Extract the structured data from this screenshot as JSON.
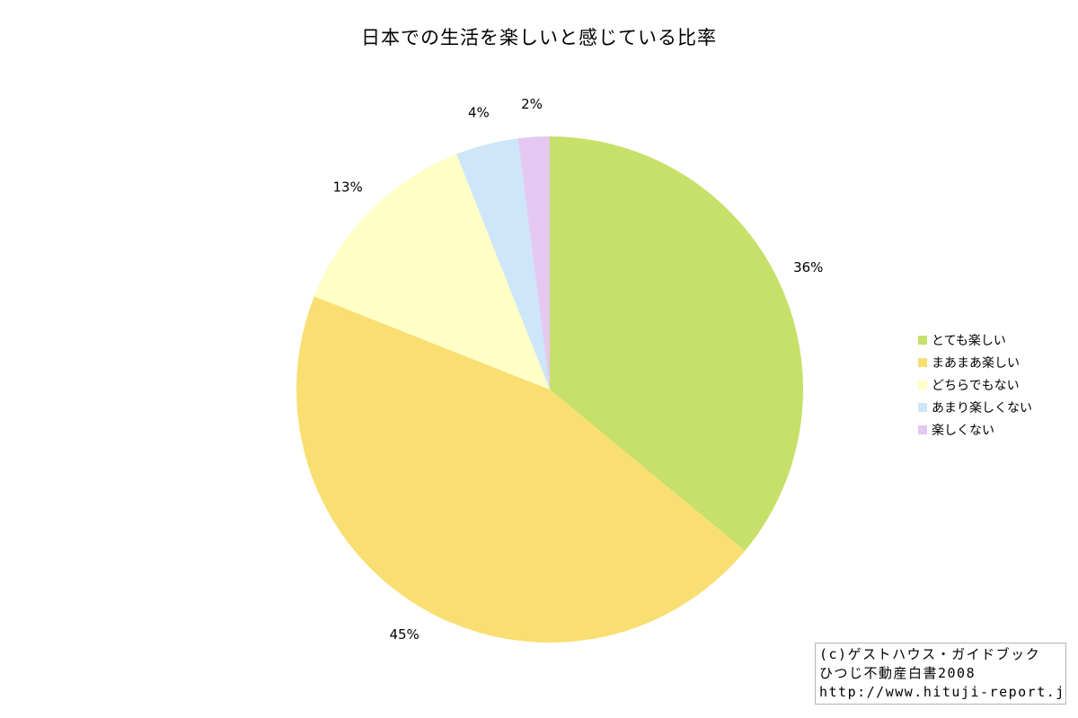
{
  "chart_data": {
    "type": "pie",
    "title": "日本での生活を楽しいと感じている比率",
    "slices": [
      {
        "label": "とても楽しい",
        "value": 36,
        "value_label": "36%",
        "color": "#c6e06a"
      },
      {
        "label": "まあまあ楽しい",
        "value": 45,
        "value_label": "45%",
        "color": "#f9df72"
      },
      {
        "label": "どちらでもない",
        "value": 13,
        "value_label": "13%",
        "color": "#ffffc6"
      },
      {
        "label": "あまり楽しくない",
        "value": 4,
        "value_label": "4%",
        "color": "#cde6fa"
      },
      {
        "label": "楽しくない",
        "value": 2,
        "value_label": "2%",
        "color": "#e4c8f2"
      }
    ],
    "legend": "right"
  },
  "credit": {
    "line1": "(c)ゲストハウス・ガイドブック",
    "line2": "ひつじ不動産白書2008",
    "line3": "http://www.hituji-report.jp/"
  }
}
